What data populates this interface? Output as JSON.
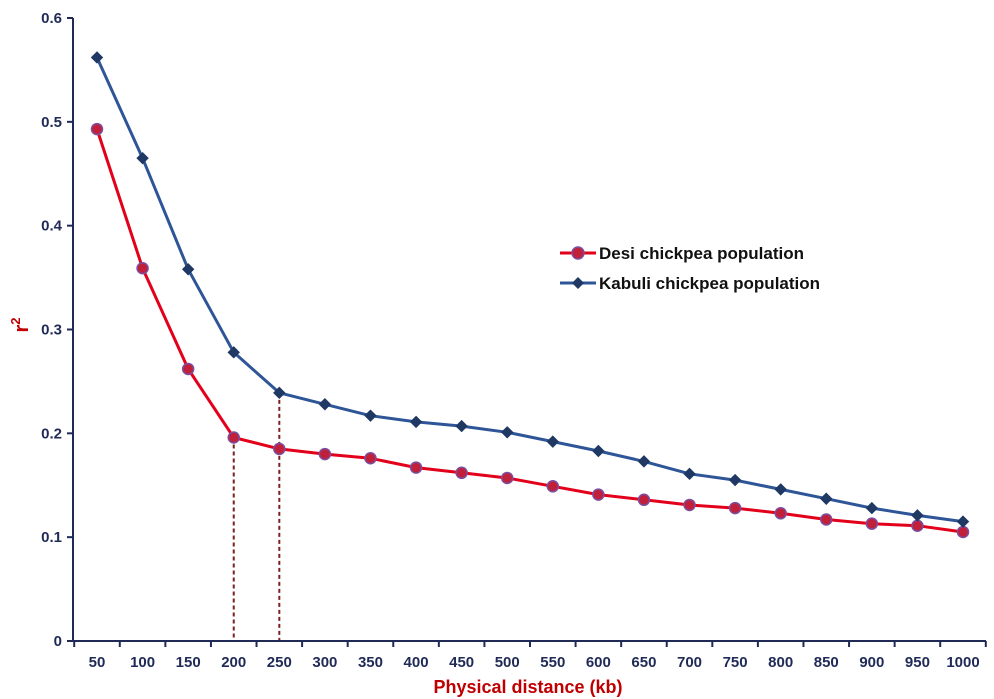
{
  "chart_data": {
    "type": "line",
    "xlabel": "Physical distance (kb)",
    "ylabel": "r",
    "ylabel_superscript": "2",
    "x": [
      50,
      100,
      150,
      200,
      250,
      300,
      350,
      400,
      450,
      500,
      550,
      600,
      650,
      700,
      750,
      800,
      850,
      900,
      950,
      1000
    ],
    "x_tick_labels": [
      "50",
      "100",
      "150",
      "200",
      "250",
      "300",
      "350",
      "400",
      "450",
      "500",
      "550",
      "600",
      "650",
      "700",
      "750",
      "800",
      "850",
      "900",
      "950",
      "1000"
    ],
    "ylim": [
      0,
      0.6
    ],
    "y_tick_labels": [
      "0",
      "0.1",
      "0.2",
      "0.3",
      "0.4",
      "0.5",
      "0.6"
    ],
    "y_ticks": [
      0,
      0.1,
      0.2,
      0.3,
      0.4,
      0.5,
      0.6
    ],
    "grid": false,
    "legend_position": "right",
    "series": [
      {
        "name": "Desi chickpea population",
        "color": "#e3001b",
        "marker": "circle",
        "marker_fill": "#c0203a",
        "values": [
          0.493,
          0.359,
          0.262,
          0.196,
          0.185,
          0.18,
          0.176,
          0.167,
          0.162,
          0.157,
          0.149,
          0.141,
          0.136,
          0.131,
          0.128,
          0.123,
          0.117,
          0.113,
          0.111,
          0.105
        ]
      },
      {
        "name": "Kabuli chickpea population",
        "color": "#2e5597",
        "marker": "diamond",
        "marker_fill": "#1f3864",
        "values": [
          0.562,
          0.465,
          0.358,
          0.278,
          0.239,
          0.228,
          0.217,
          0.211,
          0.207,
          0.201,
          0.192,
          0.183,
          0.173,
          0.161,
          0.155,
          0.146,
          0.137,
          0.128,
          0.121,
          0.115
        ]
      }
    ],
    "reference_lines": [
      {
        "x": 200,
        "y": 0.196,
        "color": "#7b1f1f",
        "style": "dashed"
      },
      {
        "x": 250,
        "y": 0.239,
        "color": "#7b1f1f",
        "style": "dashed"
      }
    ],
    "axis_color": "#1f2a57"
  }
}
